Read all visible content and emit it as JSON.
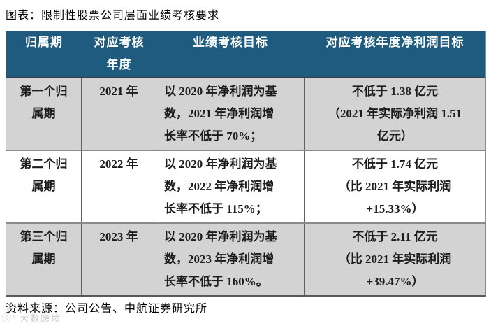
{
  "title": "图表：限制性股票公司层面业绩考核要求",
  "table": {
    "headers": [
      "归属期",
      "对应考核\n年度",
      "业绩考核目标",
      "对应考核年度净利润目标"
    ],
    "rows": [
      {
        "period": "第一个归\n属期",
        "year": "2021 年",
        "target": "以 2020 年净利润为基\n数，2021 年净利润增\n长率不低于 70%；",
        "profit_target": "不低于 1.38 亿元\n（2021 年实际净利润 1.51\n亿元）"
      },
      {
        "period": "第二个归\n属期",
        "year": "2022 年",
        "target": "以 2020 年净利润为基\n数，2022 年净利润增\n长率不低于 115%；",
        "profit_target": "不低于 1.74 亿元\n（比 2021 年实际利润\n+15.33%）"
      },
      {
        "period": "第三个归\n属期",
        "year": "2023 年",
        "target": "以 2020 年净利润为基\n数，2023 年净利润增\n长率不低于 160%。",
        "profit_target": "不低于 2.11 亿元\n（比 2021 年实际利润\n+39.47%）"
      }
    ]
  },
  "source": "资料来源：公司公告、中航证券研究所",
  "watermark": {
    "logo": "ⓒ°",
    "text": "大数跨境"
  },
  "colors": {
    "header_bg": "#1e5b7e",
    "header_text": "#ffffff",
    "row_alt_bg": "#d3d3d3",
    "row_bg": "#ffffff",
    "border": "#8a8a8a",
    "text": "#1c1c1c"
  }
}
